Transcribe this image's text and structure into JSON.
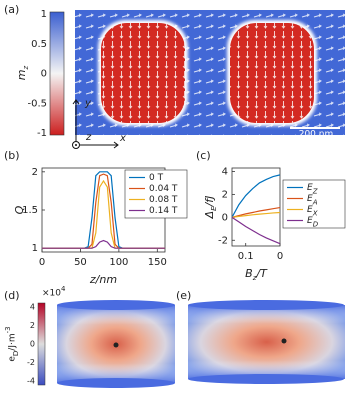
{
  "panel_a": {
    "label": "(a)",
    "colorbar": {
      "label": "m_z",
      "ticks": [
        1,
        0.5,
        0,
        -0.5,
        -1
      ]
    },
    "axis_labels": {
      "y": "y",
      "z": "z",
      "x": "x"
    },
    "scale_bar": "200 nm"
  },
  "panel_d": {
    "label": "(d)",
    "colorbar": {
      "label": "e_D/J·m^{-3}",
      "multiplier": "×10^4",
      "ticks": [
        4,
        2,
        0,
        -2,
        -4
      ]
    }
  },
  "panel_e": {
    "label": "(e)"
  },
  "chart_data": [
    {
      "type": "line",
      "panel_label": "(b)",
      "x_label": "z/nm",
      "y_label": "Q",
      "x": [
        0,
        20,
        40,
        55,
        60,
        65,
        70,
        75,
        80,
        85,
        90,
        95,
        100,
        105,
        120,
        140,
        160
      ],
      "series": [
        {
          "name": "0 T",
          "color": "#0072BD",
          "values": [
            1,
            1,
            1,
            1,
            1.02,
            1.4,
            1.95,
            2,
            2,
            2,
            1.95,
            1.4,
            1.02,
            1,
            1,
            1,
            1
          ]
        },
        {
          "name": "0.04 T",
          "color": "#D95319",
          "values": [
            1,
            1,
            1,
            1,
            1,
            1.05,
            1.6,
            1.95,
            1.97,
            1.95,
            1.6,
            1.05,
            1,
            1,
            1,
            1,
            1
          ]
        },
        {
          "name": "0.08 T",
          "color": "#EDB120",
          "values": [
            1,
            1,
            1,
            1,
            1,
            1,
            1.2,
            1.8,
            1.88,
            1.8,
            1.2,
            1,
            1,
            1,
            1,
            1,
            1
          ]
        },
        {
          "name": "0.14 T",
          "color": "#7E2F8E",
          "values": [
            1,
            1,
            1,
            1,
            1,
            1,
            1.02,
            1.08,
            1.1,
            1.08,
            1.02,
            1,
            1,
            1,
            1,
            1,
            1
          ]
        }
      ],
      "xlim": [
        0,
        160
      ],
      "ylim": [
        0.95,
        2.05
      ],
      "xticks": [
        0,
        50,
        100,
        150
      ],
      "yticks": [
        1,
        1.5,
        2
      ],
      "legend": "upper right"
    },
    {
      "type": "line",
      "panel_label": "(c)",
      "x_label": "B_z/T",
      "y_label": "Δ_E/fJ",
      "x": [
        0.14,
        0.12,
        0.1,
        0.08,
        0.06,
        0.04,
        0.02,
        0
      ],
      "series": [
        {
          "name": "E_Z",
          "color": "#0072BD",
          "values": [
            0,
            1.1,
            1.9,
            2.5,
            3.0,
            3.3,
            3.55,
            3.7
          ]
        },
        {
          "name": "E_A",
          "color": "#D95319",
          "values": [
            0,
            0.15,
            0.3,
            0.42,
            0.55,
            0.65,
            0.75,
            0.85
          ]
        },
        {
          "name": "E_X",
          "color": "#EDB120",
          "values": [
            0,
            0.08,
            0.15,
            0.22,
            0.28,
            0.33,
            0.38,
            0.42
          ]
        },
        {
          "name": "E_D",
          "color": "#7E2F8E",
          "values": [
            0,
            -0.4,
            -0.8,
            -1.15,
            -1.5,
            -1.8,
            -2.05,
            -2.3
          ]
        }
      ],
      "xlim": [
        0.14,
        0
      ],
      "ylim": [
        -2.5,
        4.3
      ],
      "xticks": [
        0.1,
        0
      ],
      "yticks": [
        -2,
        0,
        2,
        4
      ],
      "legend": "outside right"
    }
  ]
}
